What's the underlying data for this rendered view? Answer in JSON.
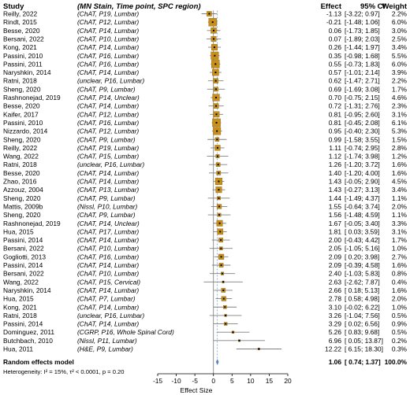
{
  "chart_data": {
    "type": "forest",
    "columns": {
      "study": "Study",
      "subgroup": "(MN Stain, Time point, SPC region)",
      "effect": "Effect",
      "ci": "95% CI",
      "weight": "Weight"
    },
    "xlabel": "Effect Size",
    "xlim": [
      -15,
      20
    ],
    "xticks": [
      -15,
      -10,
      -5,
      0,
      5,
      10,
      15,
      20
    ],
    "colors": {
      "box": "#c8901a",
      "line": "#808080",
      "diamond": "#5b8fc4",
      "summary_line": "#5b8fc4"
    },
    "studies": [
      {
        "study": "Reilly, 2022",
        "subgroup": "(ChAT, P19, Lumbar)",
        "effect": -1.13,
        "lo": -3.22,
        "hi": 0.97,
        "weight": 2.2,
        "effect_text": "-1.13",
        "ci_text": "[-3.22; 0.97]",
        "weight_text": "2.2%"
      },
      {
        "study": "Rindt, 2015",
        "subgroup": "(ChAT, P12, Lumbar)",
        "effect": -0.21,
        "lo": -1.48,
        "hi": 1.06,
        "weight": 6.0,
        "effect_text": "-0.21",
        "ci_text": "[-1.48; 1.06]",
        "weight_text": "6.0%"
      },
      {
        "study": "Besse, 2020",
        "subgroup": "(ChAT, P14, Lumbar)",
        "effect": 0.06,
        "lo": -1.73,
        "hi": 1.85,
        "weight": 3.0,
        "effect_text": "0.06",
        "ci_text": "[-1.73; 1.85]",
        "weight_text": "3.0%"
      },
      {
        "study": "Bersani, 2022",
        "subgroup": "(ChAT, P10, Lumbar)",
        "effect": 0.07,
        "lo": -1.89,
        "hi": 2.03,
        "weight": 2.5,
        "effect_text": "0.07",
        "ci_text": "[-1.89; 2.03]",
        "weight_text": "2.5%"
      },
      {
        "study": "Kong, 2021",
        "subgroup": "(ChAT, P14, Lumbar)",
        "effect": 0.26,
        "lo": -1.44,
        "hi": 1.97,
        "weight": 3.4,
        "effect_text": "0.26",
        "ci_text": "[-1.44; 1.97]",
        "weight_text": "3.4%"
      },
      {
        "study": "Passini, 2010",
        "subgroup": "(ChAT, P16, Lumbar)",
        "effect": 0.35,
        "lo": -0.98,
        "hi": 1.68,
        "weight": 5.5,
        "effect_text": "0.35",
        "ci_text": "[-0.98; 1.68]",
        "weight_text": "5.5%"
      },
      {
        "study": "Passini, 2011",
        "subgroup": "(ChAT, P16, Lumbar)",
        "effect": 0.55,
        "lo": -0.73,
        "hi": 1.83,
        "weight": 6.0,
        "effect_text": "0.55",
        "ci_text": "[-0.73; 1.83]",
        "weight_text": "6.0%"
      },
      {
        "study": "Naryshkin, 2014",
        "subgroup": "(ChAT, P14, Lumbar)",
        "effect": 0.57,
        "lo": -1.01,
        "hi": 2.14,
        "weight": 3.9,
        "effect_text": "0.57",
        "ci_text": "[-1.01; 2.14]",
        "weight_text": "3.9%"
      },
      {
        "study": "Ratni, 2018",
        "subgroup": "(unclear, P16, Lumbar)",
        "effect": 0.62,
        "lo": -1.47,
        "hi": 2.71,
        "weight": 2.2,
        "effect_text": "0.62",
        "ci_text": "[-1.47; 2.71]",
        "weight_text": "2.2%"
      },
      {
        "study": "Sheng, 2020",
        "subgroup": "(ChAT, P9, Lumbar)",
        "effect": 0.69,
        "lo": -1.69,
        "hi": 3.08,
        "weight": 1.7,
        "effect_text": "0.69",
        "ci_text": "[-1.69; 3.08]",
        "weight_text": "1.7%"
      },
      {
        "study": "Rashnonejad, 2019",
        "subgroup": "(ChAT, P14, Unclear)",
        "effect": 0.7,
        "lo": -0.75,
        "hi": 2.15,
        "weight": 4.6,
        "effect_text": "0.70",
        "ci_text": "[-0.75; 2.15]",
        "weight_text": "4.6%"
      },
      {
        "study": "Besse, 2020",
        "subgroup": "(ChAT, P14, Lumbar)",
        "effect": 0.72,
        "lo": -1.31,
        "hi": 2.76,
        "weight": 2.3,
        "effect_text": "0.72",
        "ci_text": "[-1.31; 2.76]",
        "weight_text": "2.3%"
      },
      {
        "study": "Kaifer, 2017",
        "subgroup": "(ChAT, P12, Lumbar)",
        "effect": 0.81,
        "lo": -0.95,
        "hi": 2.6,
        "weight": 3.1,
        "effect_text": "0.81",
        "ci_text": "[-0.95; 2.60]",
        "weight_text": "3.1%"
      },
      {
        "study": "Passini, 2010",
        "subgroup": "(ChAT, P16, Lumbar)",
        "effect": 0.81,
        "lo": -0.45,
        "hi": 2.08,
        "weight": 6.1,
        "effect_text": "0.81",
        "ci_text": "[-0.45; 2.08]",
        "weight_text": "6.1%"
      },
      {
        "study": "Nizzardo, 2014",
        "subgroup": "(ChAT, P12, Lumbar)",
        "effect": 0.95,
        "lo": -0.4,
        "hi": 2.3,
        "weight": 5.3,
        "effect_text": "0.95",
        "ci_text": "[-0.40; 2.30]",
        "weight_text": "5.3%"
      },
      {
        "study": "Sheng, 2020",
        "subgroup": "(ChAT, P9, Lumbar)",
        "effect": 0.99,
        "lo": -1.58,
        "hi": 3.55,
        "weight": 1.5,
        "effect_text": "0.99",
        "ci_text": "[-1.58; 3.55]",
        "weight_text": "1.5%"
      },
      {
        "study": "Reilly, 2022",
        "subgroup": "(ChAT, P19, Lumbar)",
        "effect": 1.11,
        "lo": -0.74,
        "hi": 2.95,
        "weight": 2.8,
        "effect_text": "1.11",
        "ci_text": "[-0.74; 2.95]",
        "weight_text": "2.8%"
      },
      {
        "study": "Wang, 2022",
        "subgroup": "(ChAT, P15, Lumbar)",
        "effect": 1.12,
        "lo": -1.74,
        "hi": 3.98,
        "weight": 1.2,
        "effect_text": "1.12",
        "ci_text": "[-1.74; 3.98]",
        "weight_text": "1.2%"
      },
      {
        "study": "Ratni, 2018",
        "subgroup": "(unclear, P16, Lumbar)",
        "effect": 1.26,
        "lo": -1.2,
        "hi": 3.72,
        "weight": 1.6,
        "effect_text": "1.26",
        "ci_text": "[-1.20; 3.72]",
        "weight_text": "1.6%"
      },
      {
        "study": "Besse, 2020",
        "subgroup": "(ChAT, P14, Lumbar)",
        "effect": 1.4,
        "lo": -1.2,
        "hi": 4.0,
        "weight": 1.6,
        "effect_text": "1.40",
        "ci_text": "[-1.20; 4.00]",
        "weight_text": "1.6%"
      },
      {
        "study": "Zhao, 2016",
        "subgroup": "(ChAT, P14, Lumbar)",
        "effect": 1.43,
        "lo": -0.05,
        "hi": 2.9,
        "weight": 4.5,
        "effect_text": "1.43",
        "ci_text": "[-0.05; 2.90]",
        "weight_text": "4.5%"
      },
      {
        "study": "Azzouz, 2004",
        "subgroup": "(ChAT, P13, Lumbar)",
        "effect": 1.43,
        "lo": -0.27,
        "hi": 3.13,
        "weight": 3.4,
        "effect_text": "1.43",
        "ci_text": "[-0.27; 3.13]",
        "weight_text": "3.4%"
      },
      {
        "study": "Sheng, 2020",
        "subgroup": "(ChAT, P9, Lumbar)",
        "effect": 1.44,
        "lo": -1.49,
        "hi": 4.37,
        "weight": 1.1,
        "effect_text": "1.44",
        "ci_text": "[-1.49; 4.37]",
        "weight_text": "1.1%"
      },
      {
        "study": "Mattis, 2009b",
        "subgroup": "(Nissl, P10, Lumbar)",
        "effect": 1.55,
        "lo": -0.64,
        "weight": 2.0,
        "hi": 3.74,
        "effect_text": "1.55",
        "ci_text": "[-0.64; 3.74]",
        "weight_text": "2.0%"
      },
      {
        "study": "Sheng, 2020",
        "subgroup": "(ChAT, P9, Lumbar)",
        "effect": 1.56,
        "lo": -1.48,
        "hi": 4.59,
        "weight": 1.1,
        "effect_text": "1.56",
        "ci_text": "[-1.48; 4.59]",
        "weight_text": "1.1%"
      },
      {
        "study": "Rashnonejad, 2019",
        "subgroup": "(ChAT, P14, Unclear)",
        "effect": 1.67,
        "lo": -0.05,
        "hi": 3.4,
        "weight": 3.3,
        "effect_text": "1.67",
        "ci_text": "[-0.05; 3.40]",
        "weight_text": "3.3%"
      },
      {
        "study": "Hua, 2015",
        "subgroup": "(ChAT, P17, Lumbar)",
        "effect": 1.81,
        "lo": 0.03,
        "hi": 3.59,
        "weight": 3.1,
        "effect_text": "1.81",
        "ci_text": "[ 0.03; 3.59]",
        "weight_text": "3.1%"
      },
      {
        "study": "Passini, 2014",
        "subgroup": "(ChAT, P14, Lumbar)",
        "effect": 2.0,
        "lo": -0.43,
        "hi": 4.42,
        "weight": 1.7,
        "effect_text": "2.00",
        "ci_text": "[-0.43; 4.42]",
        "weight_text": "1.7%"
      },
      {
        "study": "Bersani, 2022",
        "subgroup": "(ChAT, P10, Lumbar)",
        "effect": 2.05,
        "lo": -1.05,
        "hi": 5.16,
        "weight": 1.0,
        "effect_text": "2.05",
        "ci_text": "[-1.05; 5.16]",
        "weight_text": "1.0%"
      },
      {
        "study": "Gogliotti, 2013",
        "subgroup": "(ChAT, P16, Lumbar)",
        "effect": 2.09,
        "lo": 0.2,
        "hi": 3.98,
        "weight": 2.7,
        "effect_text": "2.09",
        "ci_text": "[ 0.20; 3.98]",
        "weight_text": "2.7%"
      },
      {
        "study": "Passini, 2014",
        "subgroup": "(ChAT, P14, Lumbar)",
        "effect": 2.09,
        "lo": -0.39,
        "hi": 4.58,
        "weight": 1.6,
        "effect_text": "2.09",
        "ci_text": "[-0.39; 4.58]",
        "weight_text": "1.6%"
      },
      {
        "study": "Bersani, 2022",
        "subgroup": "(ChAT, P10, Lumbar)",
        "effect": 2.4,
        "lo": -1.03,
        "hi": 5.83,
        "weight": 0.8,
        "effect_text": "2.40",
        "ci_text": "[-1.03; 5.83]",
        "weight_text": "0.8%"
      },
      {
        "study": "Wang, 2022",
        "subgroup": "(ChAT, P15, Cervical)",
        "effect": 2.63,
        "lo": -2.62,
        "hi": 7.87,
        "weight": 0.4,
        "effect_text": "2.63",
        "ci_text": "[-2.62; 7.87]",
        "weight_text": "0.4%"
      },
      {
        "study": "Naryshkin, 2014",
        "subgroup": "(ChAT, P14, Lumbar)",
        "effect": 2.66,
        "lo": 0.18,
        "hi": 5.13,
        "weight": 1.6,
        "effect_text": "2.66",
        "ci_text": "[ 0.18; 5.13]",
        "weight_text": "1.6%"
      },
      {
        "study": "Hua, 2015",
        "subgroup": "(ChAT, P7, Lumbar)",
        "effect": 2.78,
        "lo": 0.58,
        "hi": 4.98,
        "weight": 2.0,
        "effect_text": "2.78",
        "ci_text": "[ 0.58; 4.98]",
        "weight_text": "2.0%"
      },
      {
        "study": "Kong, 2021",
        "subgroup": "(ChAT, P14, Lumbar)",
        "effect": 3.1,
        "lo": -0.02,
        "hi": 6.22,
        "weight": 1.0,
        "effect_text": "3.10",
        "ci_text": "[-0.02; 6.22]",
        "weight_text": "1.0%"
      },
      {
        "study": "Ratni, 2018",
        "subgroup": "(unclear, P16, Lumbar)",
        "effect": 3.26,
        "lo": -1.04,
        "hi": 7.56,
        "weight": 0.5,
        "effect_text": "3.26",
        "ci_text": "[-1.04; 7.56]",
        "weight_text": "0.5%"
      },
      {
        "study": "Passini, 2014",
        "subgroup": "(ChAT, P14, Lumbar)",
        "effect": 3.29,
        "lo": 0.02,
        "hi": 6.56,
        "weight": 0.9,
        "effect_text": "3.29",
        "ci_text": "[ 0.02; 6.56]",
        "weight_text": "0.9%"
      },
      {
        "study": "Dominguez, 2011",
        "subgroup": "(CGRP, P16, Whole Spinal Cord)",
        "effect": 5.26,
        "lo": 0.83,
        "hi": 9.68,
        "weight": 0.5,
        "effect_text": "5.26",
        "ci_text": "[ 0.83; 9.68]",
        "weight_text": "0.5%"
      },
      {
        "study": "Butchbach, 2010",
        "subgroup": "(Nissl, P11, Lumbar)",
        "effect": 6.96,
        "lo": 0.05,
        "hi": 13.87,
        "weight": 0.2,
        "effect_text": "6.96",
        "ci_text": "[ 0.05; 13.87]",
        "weight_text": "0.2%"
      },
      {
        "study": "Hua, 2011",
        "subgroup": "(H&E, P9, Lumbar)",
        "effect": 12.22,
        "lo": 6.15,
        "hi": 18.3,
        "weight": 0.3,
        "effect_text": "12.22",
        "ci_text": "[ 6.15; 18.30]",
        "weight_text": "0.3%"
      }
    ],
    "summary": {
      "label": "Random effects model",
      "effect": 1.06,
      "lo": 0.74,
      "hi": 1.37,
      "effect_text": "1.06",
      "ci_text": "[ 0.74; 1.37]",
      "weight_text": "100.0%"
    },
    "heterogeneity": "Heterogeneity: I² = 15%, τ² < 0.0001, p = 0.20"
  }
}
